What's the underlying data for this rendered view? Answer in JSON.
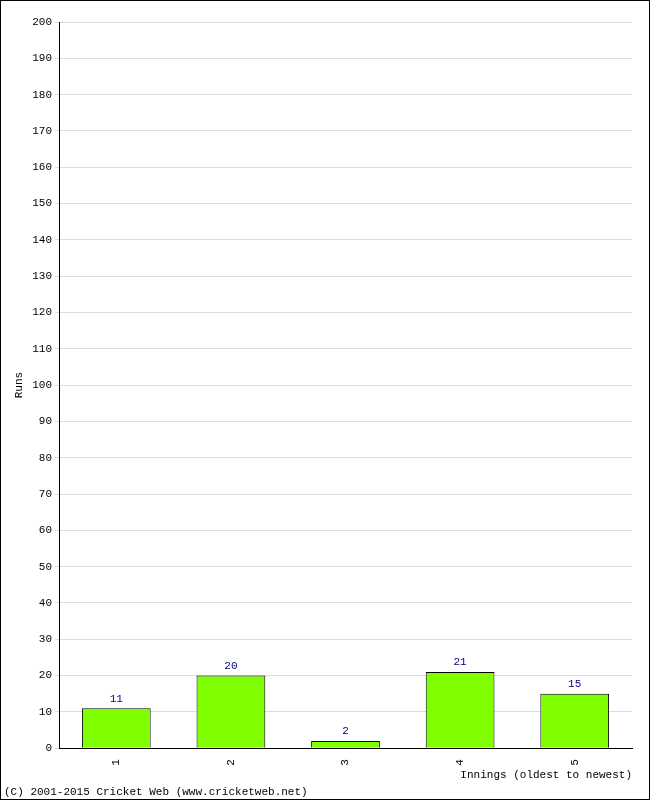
{
  "chart_data": {
    "type": "bar",
    "x_label": "Innings (oldest to newest)",
    "y_label": "Runs",
    "annotations": [
      "(C) 2001-2015 Cricket Web (www.cricketweb.net)"
    ],
    "categories": [
      "1",
      "2",
      "3",
      "4",
      "5"
    ],
    "values": [
      11,
      20,
      2,
      21,
      15
    ],
    "color": "#7fff00",
    "ylim": [
      0,
      200
    ],
    "yticks": [
      0,
      10,
      20,
      30,
      40,
      50,
      60,
      70,
      80,
      90,
      100,
      110,
      120,
      130,
      140,
      150,
      160,
      170,
      180,
      190,
      200
    ],
    "grid": true,
    "data_labels": true
  }
}
